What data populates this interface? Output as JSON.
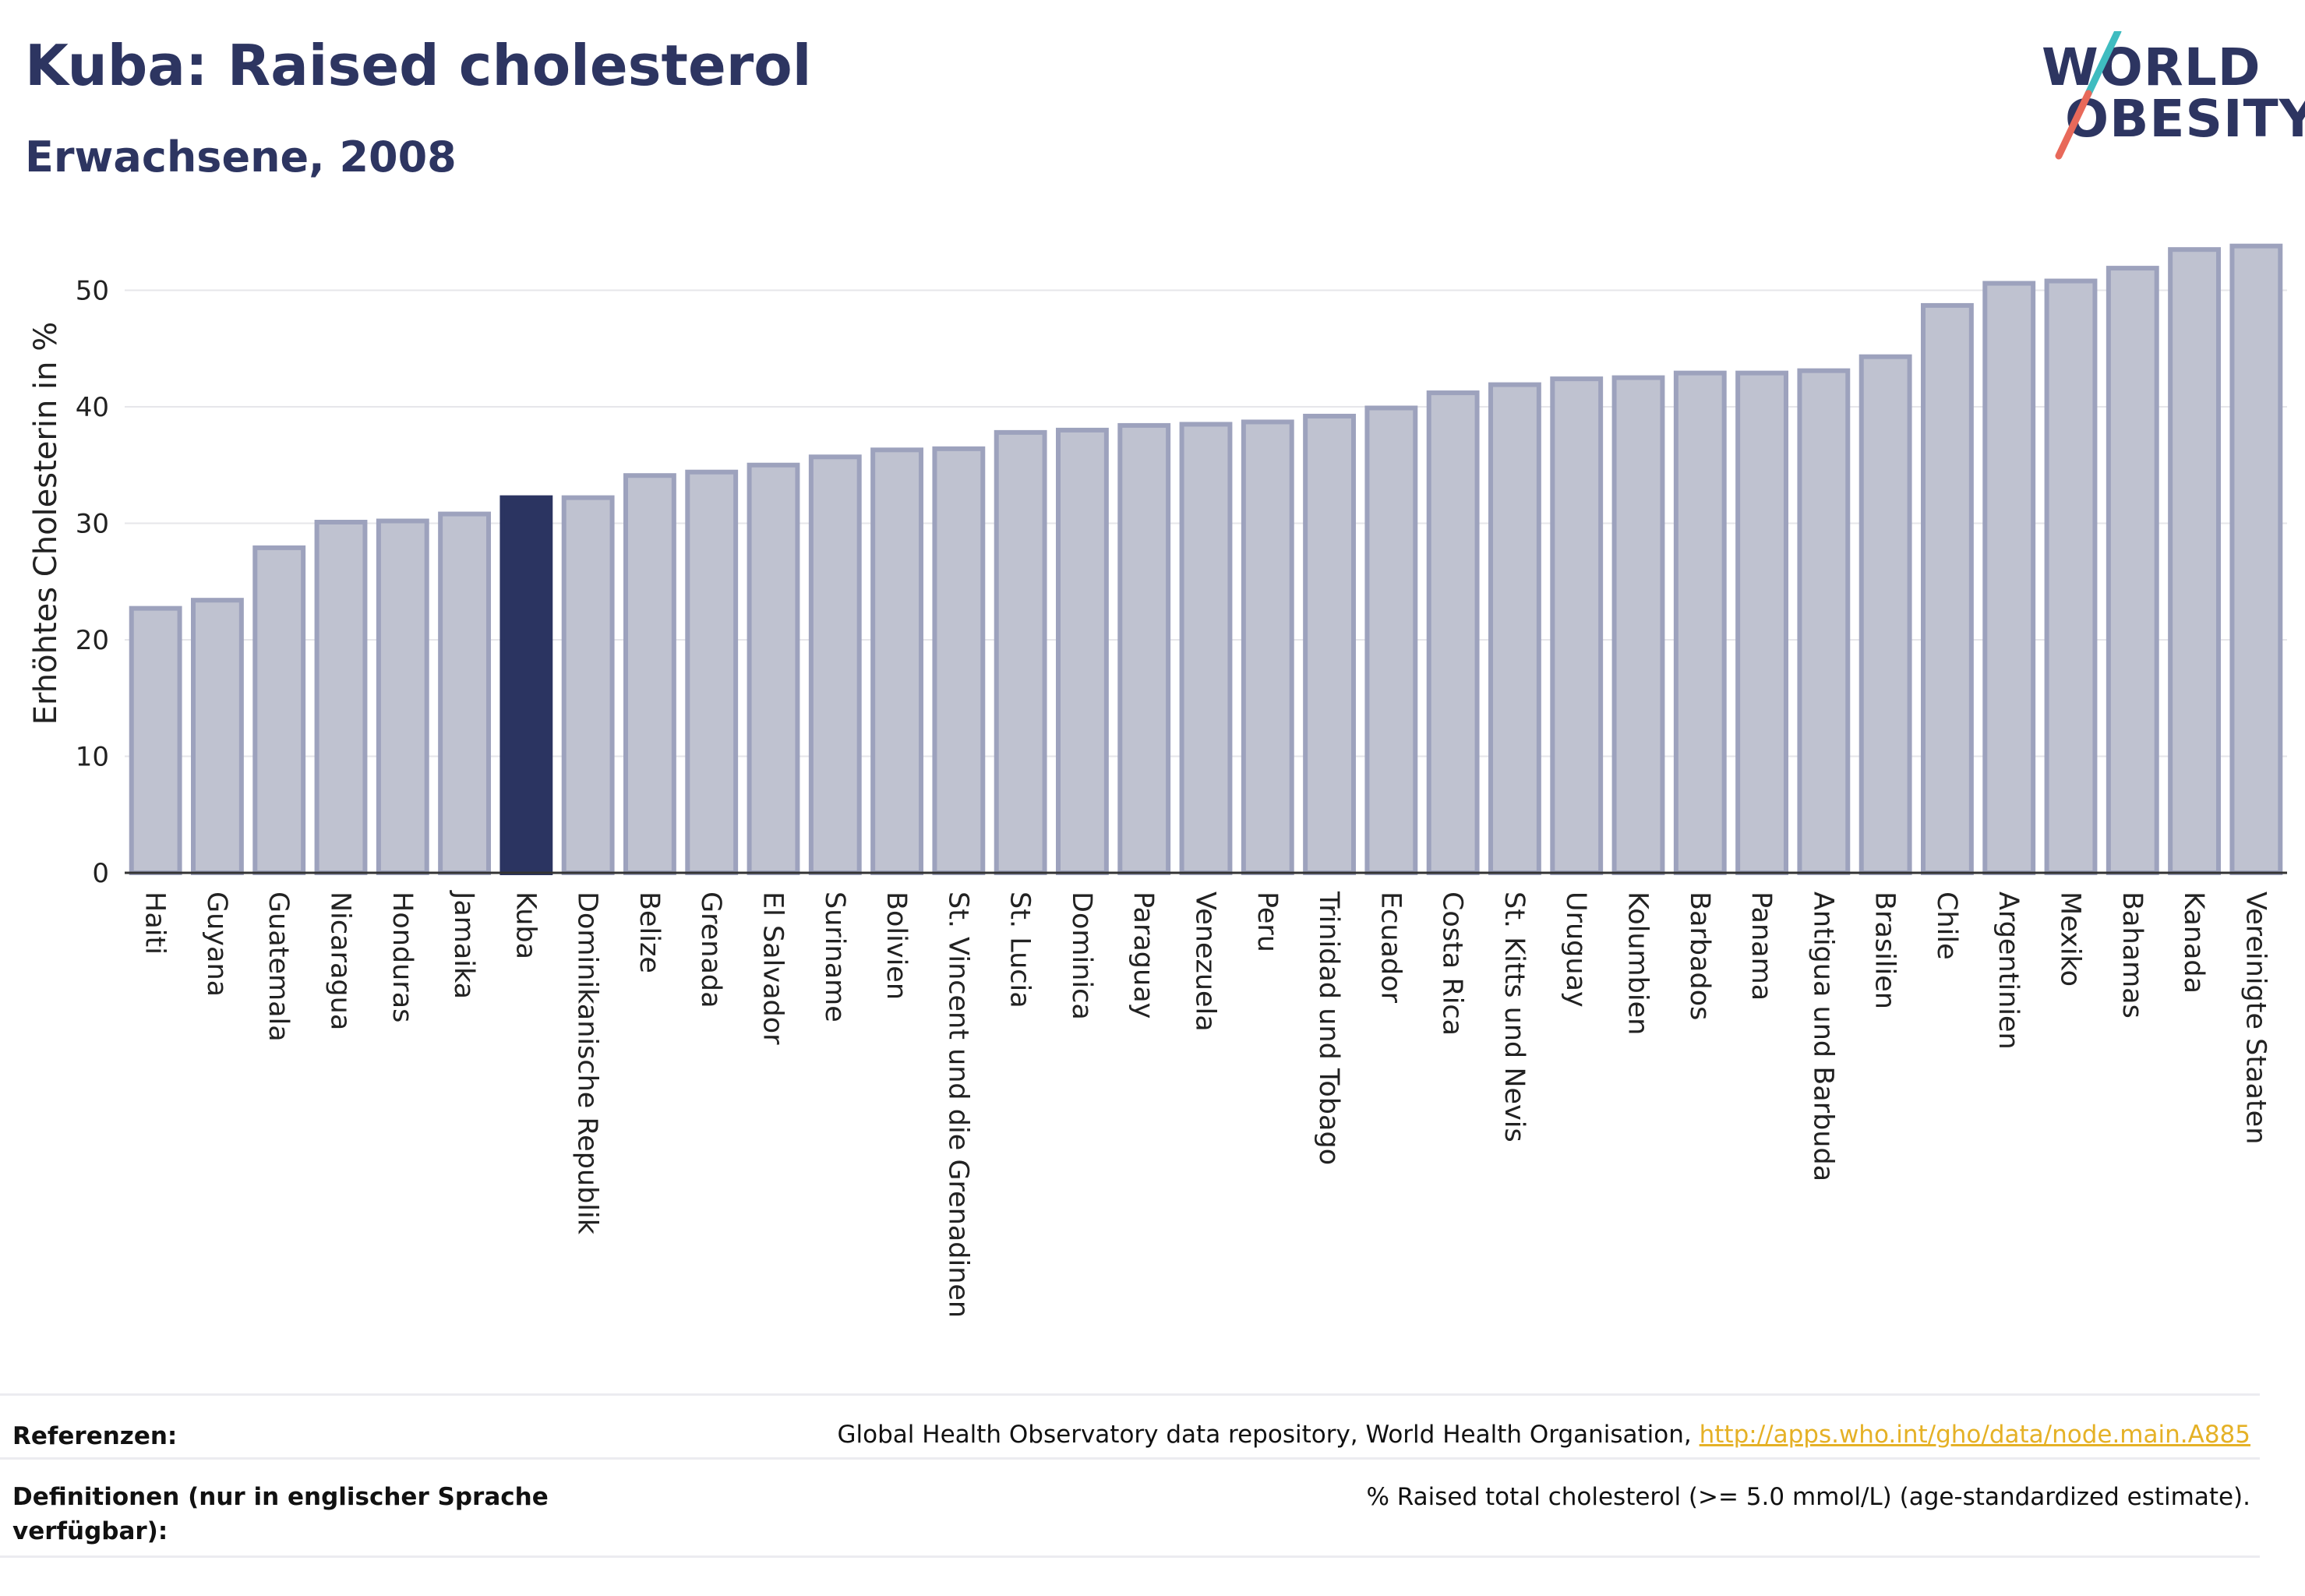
{
  "header": {
    "title": "Kuba: Raised cholesterol",
    "subtitle": "Erwachsene, 2008"
  },
  "logo": {
    "line1": "WORLD",
    "line2": "OBESITY"
  },
  "colors": {
    "highlight": "#2b3461",
    "bar": "#bfc2d0",
    "bar_border": "#9da2bd",
    "title": "#2d3561",
    "link": "#e5b126"
  },
  "chart_data": {
    "type": "bar",
    "title": "Kuba: Raised cholesterol",
    "subtitle": "Erwachsene, 2008",
    "xlabel": "",
    "ylabel": "Erhöhtes Cholesterin in %",
    "ylim": [
      0,
      55
    ],
    "yticks": [
      0,
      10,
      20,
      30,
      40,
      50
    ],
    "grid": true,
    "highlight": "Kuba",
    "categories": [
      "Haiti",
      "Guyana",
      "Guatemala",
      "Nicaragua",
      "Honduras",
      "Jamaika",
      "Kuba",
      "Dominikanische Republik",
      "Belize",
      "Grenada",
      "El Salvador",
      "Suriname",
      "Bolivien",
      "St. Vincent und die Grenadinen",
      "St. Lucia",
      "Dominica",
      "Paraguay",
      "Venezuela",
      "Peru",
      "Trinidad und Tobago",
      "Ecuador",
      "Costa Rica",
      "St. Kitts und Nevis",
      "Uruguay",
      "Kolumbien",
      "Barbados",
      "Panama",
      "Antigua und Barbuda",
      "Brasilien",
      "Chile",
      "Argentinien",
      "Mexiko",
      "Bahamas",
      "Kanada",
      "Vereinigte Staaten"
    ],
    "values": [
      22.7,
      23.4,
      27.9,
      30.1,
      30.2,
      30.8,
      32.2,
      32.2,
      34.1,
      34.4,
      35.0,
      35.7,
      36.3,
      36.4,
      37.8,
      38.0,
      38.4,
      38.5,
      38.7,
      39.2,
      39.9,
      41.2,
      41.9,
      42.4,
      42.5,
      42.9,
      42.9,
      43.1,
      44.3,
      48.7,
      50.6,
      50.8,
      51.9,
      53.5,
      53.8
    ]
  },
  "footer": {
    "references_label": "Referenzen:",
    "references_text": "Global Health Observatory data repository, World Health Organisation, ",
    "references_link": "http://apps.who.int/gho/data/node.main.A885",
    "definitions_label": "Definitionen (nur in englischer Sprache verfügbar):",
    "definitions_text": "% Raised total cholesterol (>= 5.0 mmol/L) (age-standardized estimate)."
  }
}
